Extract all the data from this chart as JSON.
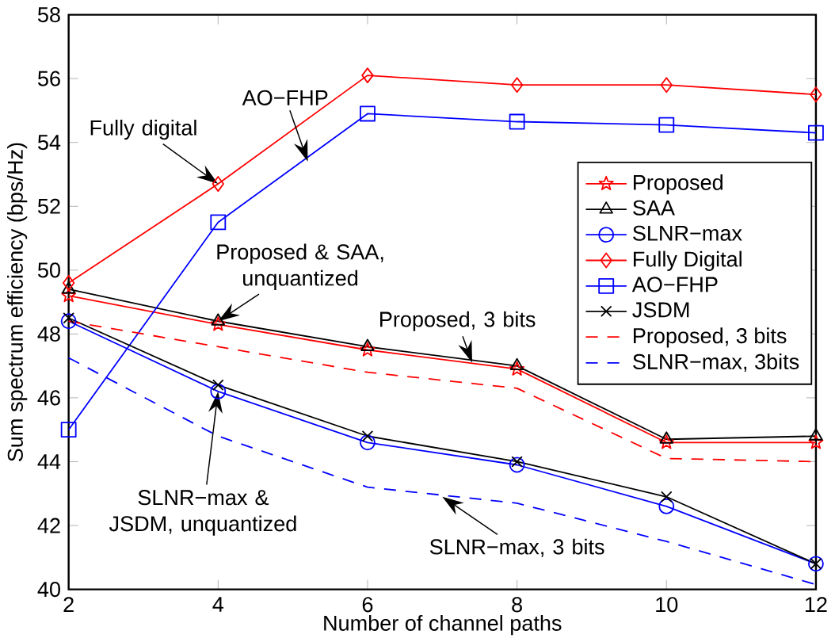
{
  "chart_data": {
    "type": "line",
    "xlabel": "Number of channel paths",
    "ylabel": "Sum spectrum efficiency (bps/Hz)",
    "x": [
      2,
      4,
      6,
      8,
      10,
      12
    ],
    "xlim": [
      2,
      12
    ],
    "xticks": [
      2,
      4,
      6,
      8,
      10,
      12
    ],
    "ylim": [
      40,
      58
    ],
    "yticks": [
      40,
      42,
      44,
      46,
      48,
      50,
      52,
      54,
      56,
      58
    ],
    "legend": "right",
    "grid": false,
    "series": [
      {
        "name": "Proposed",
        "color": "#ff0000",
        "marker": "star",
        "line_style": "solid",
        "values": [
          49.2,
          48.3,
          47.5,
          46.9,
          44.6,
          44.6
        ]
      },
      {
        "name": "SAA",
        "color": "#000000",
        "marker": "triangle",
        "line_style": "solid",
        "values": [
          49.4,
          48.4,
          47.6,
          47.0,
          44.7,
          44.8
        ]
      },
      {
        "name": "SLNR−max",
        "color": "#0000ff",
        "marker": "circle",
        "line_style": "solid",
        "values": [
          48.4,
          46.2,
          44.6,
          43.9,
          42.6,
          40.8
        ]
      },
      {
        "name": "Fully Digital",
        "color": "#ff0000",
        "marker": "diamond",
        "line_style": "solid",
        "values": [
          49.6,
          52.7,
          56.1,
          55.8,
          55.8,
          55.5
        ]
      },
      {
        "name": "AO−FHP",
        "color": "#0000ff",
        "marker": "square",
        "line_style": "solid",
        "values": [
          45.0,
          51.5,
          54.9,
          54.65,
          54.55,
          54.3
        ]
      },
      {
        "name": "JSDM",
        "color": "#000000",
        "marker": "cross",
        "line_style": "solid",
        "values": [
          48.5,
          46.4,
          44.8,
          44.0,
          42.9,
          40.8
        ]
      },
      {
        "name": "Proposed, 3 bits",
        "color": "#ff0000",
        "marker": "none",
        "line_style": "dashed",
        "values": [
          48.4,
          47.6,
          46.8,
          46.3,
          44.1,
          44.0
        ]
      },
      {
        "name": "SLNR−max, 3bits",
        "color": "#0000ff",
        "marker": "none",
        "line_style": "dashed",
        "values": [
          47.25,
          44.8,
          43.2,
          42.7,
          41.5,
          40.15
        ]
      }
    ],
    "annotations": [
      {
        "text": "Fully digital",
        "x": 4,
        "y": 52.7
      },
      {
        "text": "AO−FHP",
        "x": 5.2,
        "y": 53.4
      },
      {
        "text": "Proposed & SAA, unquantized",
        "x": 4,
        "y": 48.4
      },
      {
        "text": "Proposed, 3 bits",
        "x": 7.4,
        "y": 47.1
      },
      {
        "text": "SLNR−max & JSDM, unquantized",
        "x": 4,
        "y": 46.2
      },
      {
        "text": "SLNR−max, 3 bits",
        "x": 7.0,
        "y": 42.9
      }
    ]
  }
}
